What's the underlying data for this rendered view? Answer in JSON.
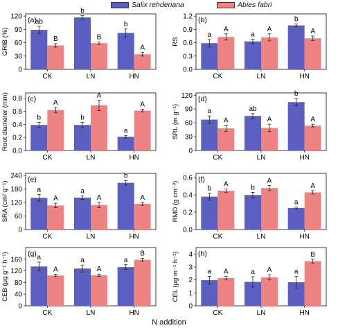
{
  "legend": [
    {
      "name": "Salix rehderiana",
      "color": "#5b5fbf"
    },
    {
      "name": "Abies fabri",
      "color": "#ee8384"
    }
  ],
  "xlabel": "N addition",
  "chart_data": [
    {
      "type": "bar",
      "panel": "(a)",
      "ylabel": "GRIB (%)",
      "categories": [
        "CK",
        "LN",
        "HN"
      ],
      "ylim": [
        0,
        125
      ],
      "yticks": [
        0,
        30,
        60,
        90,
        120
      ],
      "series": [
        {
          "name": "Salix rehderiana",
          "values": [
            89,
            117,
            82
          ],
          "errors": [
            8,
            4,
            9
          ],
          "letters": [
            "ab",
            "b",
            "b"
          ]
        },
        {
          "name": "Abies fabri",
          "values": [
            54,
            59,
            34
          ],
          "errors": [
            4,
            3,
            4
          ],
          "letters": [
            "B",
            "B",
            "A"
          ]
        }
      ]
    },
    {
      "type": "bar",
      "panel": "(b)",
      "ylabel": "RS",
      "categories": [
        "CK",
        "LN",
        "HN"
      ],
      "ylim": [
        0,
        1.25
      ],
      "yticks": [
        0.0,
        0.3,
        0.6,
        0.9,
        1.2
      ],
      "decimals": 1,
      "series": [
        {
          "name": "Salix rehderiana",
          "values": [
            0.59,
            0.63,
            0.99
          ],
          "errors": [
            0.08,
            0.05,
            0.03
          ],
          "letters": [
            "a",
            "a",
            "b"
          ]
        },
        {
          "name": "Abies fabri",
          "values": [
            0.73,
            0.72,
            0.7
          ],
          "errors": [
            0.07,
            0.08,
            0.05
          ],
          "letters": [
            "A",
            "A",
            "A"
          ]
        }
      ]
    },
    {
      "type": "bar",
      "panel": "(c)",
      "ylabel": "Root diameter (mm)",
      "categories": [
        "CK",
        "LN",
        "HN"
      ],
      "ylim": [
        0,
        0.88
      ],
      "yticks": [
        0.0,
        0.2,
        0.4,
        0.6,
        0.8
      ],
      "decimals": 1,
      "series": [
        {
          "name": "Salix rehderiana",
          "values": [
            0.39,
            0.39,
            0.21
          ],
          "errors": [
            0.04,
            0.04,
            0.02
          ],
          "letters": [
            "b",
            "b",
            "a"
          ]
        },
        {
          "name": "Abies fabri",
          "values": [
            0.62,
            0.69,
            0.61
          ],
          "errors": [
            0.04,
            0.08,
            0.02
          ],
          "letters": [
            "A",
            "A",
            "A"
          ]
        }
      ]
    },
    {
      "type": "bar",
      "panel": "(d)",
      "ylabel": "SRL (m g⁻¹)",
      "categories": [
        "CK",
        "LN",
        "HN"
      ],
      "ylim": [
        0,
        125
      ],
      "yticks": [
        0,
        30,
        60,
        90,
        120
      ],
      "series": [
        {
          "name": "Salix rehderiana",
          "values": [
            67,
            75,
            105
          ],
          "errors": [
            8,
            5,
            8
          ],
          "letters": [
            "a",
            "ab",
            "b"
          ]
        },
        {
          "name": "Abies fabri",
          "values": [
            48,
            49,
            54
          ],
          "errors": [
            7,
            8,
            3
          ],
          "letters": [
            "A",
            "A",
            "A"
          ]
        }
      ]
    },
    {
      "type": "bar",
      "panel": "(e)",
      "ylabel": "SRA (cm² g⁻¹)",
      "categories": [
        "CK",
        "LN",
        "HN"
      ],
      "ylim": [
        0,
        250
      ],
      "yticks": [
        0,
        60,
        120,
        180,
        240
      ],
      "series": [
        {
          "name": "Salix rehderiana",
          "values": [
            141,
            142,
            208
          ],
          "errors": [
            15,
            8,
            10
          ],
          "letters": [
            "a",
            "a",
            "b"
          ]
        },
        {
          "name": "Abies fabri",
          "values": [
            107,
            109,
            114
          ],
          "errors": [
            10,
            12,
            6
          ],
          "letters": [
            "A",
            "A",
            "A"
          ]
        }
      ]
    },
    {
      "type": "bar",
      "panel": "(f)",
      "ylabel": "RMD (g cm⁻³)",
      "categories": [
        "CK",
        "LN",
        "HN"
      ],
      "ylim": [
        0,
        0.65
      ],
      "yticks": [
        0.0,
        0.2,
        0.4,
        0.6
      ],
      "decimals": 1,
      "series": [
        {
          "name": "Salix rehderiana",
          "values": [
            0.38,
            0.4,
            0.25
          ],
          "errors": [
            0.04,
            0.03,
            0.01
          ],
          "letters": [
            "b",
            "b",
            "a"
          ]
        },
        {
          "name": "Abies fabri",
          "values": [
            0.45,
            0.48,
            0.43
          ],
          "errors": [
            0.02,
            0.03,
            0.02
          ],
          "letters": [
            "A",
            "A",
            "A"
          ]
        }
      ]
    },
    {
      "type": "bar",
      "panel": "(g)",
      "ylabel": "CEB (μg g⁻¹ h⁻¹)",
      "categories": [
        "CK",
        "LN",
        "HN"
      ],
      "ylim": [
        0,
        200
      ],
      "yticks": [
        0,
        40,
        80,
        120,
        160
      ],
      "series": [
        {
          "name": "Salix rehderiana",
          "values": [
            135,
            128,
            133
          ],
          "errors": [
            15,
            12,
            8
          ],
          "letters": [
            "a",
            "a",
            "a"
          ]
        },
        {
          "name": "Abies fabri",
          "values": [
            104,
            105,
            158
          ],
          "errors": [
            4,
            4,
            5
          ],
          "letters": [
            "A",
            "A",
            "B"
          ]
        }
      ]
    },
    {
      "type": "bar",
      "panel": "(h)",
      "ylabel": "CEL (μg m⁻¹ h⁻¹)",
      "categories": [
        "CK",
        "LN",
        "HN"
      ],
      "ylim": [
        0,
        4.5
      ],
      "yticks": [
        0,
        1,
        2,
        3,
        4
      ],
      "series": [
        {
          "name": "Salix rehderiana",
          "values": [
            1.98,
            1.85,
            1.82
          ],
          "errors": [
            0.3,
            0.4,
            0.45
          ],
          "letters": [
            "a",
            "a",
            "a"
          ]
        },
        {
          "name": "Abies fabri",
          "values": [
            2.15,
            2.2,
            3.45
          ],
          "errors": [
            0.12,
            0.2,
            0.15
          ],
          "letters": [
            "A",
            "A",
            "B"
          ]
        }
      ]
    }
  ]
}
